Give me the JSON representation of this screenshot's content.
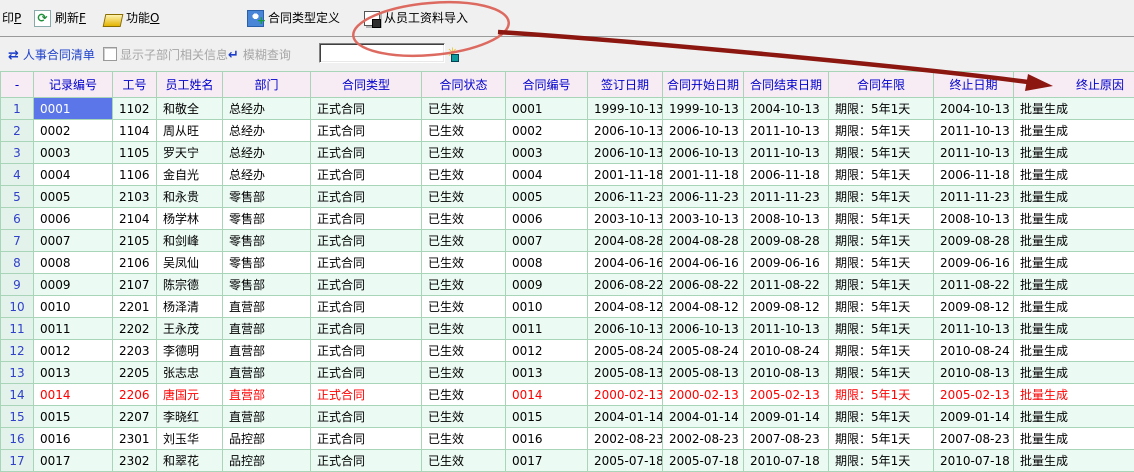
{
  "toolbar": {
    "print_text": "印",
    "print_key": "P",
    "refresh_text": "刷新",
    "refresh_key": "F",
    "functions_text": "功能",
    "functions_key": "O",
    "contract_type_def_label": "合同类型定义",
    "import_from_employee_label": "从员工资料导入"
  },
  "subbar": {
    "list_title": "人事合同清单",
    "checkbox_label": "显示子部门相关信息",
    "checkbox_checked": false,
    "fuzzy_query_label": "模糊查询",
    "query_value": ""
  },
  "icons": {
    "refresh": "⟳",
    "list_arrows": "⇄",
    "fuzzy_arrow": "↵",
    "magic": "✳"
  },
  "table": {
    "columns": [
      "-",
      "记录编号",
      "工号",
      "员工姓名",
      "部门",
      "合同类型",
      "合同状态",
      "合同编号",
      "签订日期",
      "合同开始日期",
      "合同结束日期",
      "合同年限",
      "终止日期",
      "终止原因"
    ],
    "selected_index": 0,
    "red_index": 13,
    "rows": [
      [
        "1",
        "0001",
        "1102",
        "和敬全",
        "总经办",
        "正式合同",
        "已生效",
        "0001",
        "1999-10-13",
        "1999-10-13",
        "2004-10-13",
        "期限：5年1天",
        "2004-10-13",
        "批量生成"
      ],
      [
        "2",
        "0002",
        "1104",
        "周从旺",
        "总经办",
        "正式合同",
        "已生效",
        "0002",
        "2006-10-13",
        "2006-10-13",
        "2011-10-13",
        "期限：5年1天",
        "2011-10-13",
        "批量生成"
      ],
      [
        "3",
        "0003",
        "1105",
        "罗天宁",
        "总经办",
        "正式合同",
        "已生效",
        "0003",
        "2006-10-13",
        "2006-10-13",
        "2011-10-13",
        "期限：5年1天",
        "2011-10-13",
        "批量生成"
      ],
      [
        "4",
        "0004",
        "1106",
        "金自光",
        "总经办",
        "正式合同",
        "已生效",
        "0004",
        "2001-11-18",
        "2001-11-18",
        "2006-11-18",
        "期限：5年1天",
        "2006-11-18",
        "批量生成"
      ],
      [
        "5",
        "0005",
        "2103",
        "和永贵",
        "零售部",
        "正式合同",
        "已生效",
        "0005",
        "2006-11-23",
        "2006-11-23",
        "2011-11-23",
        "期限：5年1天",
        "2011-11-23",
        "批量生成"
      ],
      [
        "6",
        "0006",
        "2104",
        "杨学林",
        "零售部",
        "正式合同",
        "已生效",
        "0006",
        "2003-10-13",
        "2003-10-13",
        "2008-10-13",
        "期限：5年1天",
        "2008-10-13",
        "批量生成"
      ],
      [
        "7",
        "0007",
        "2105",
        "和剑峰",
        "零售部",
        "正式合同",
        "已生效",
        "0007",
        "2004-08-28",
        "2004-08-28",
        "2009-08-28",
        "期限：5年1天",
        "2009-08-28",
        "批量生成"
      ],
      [
        "8",
        "0008",
        "2106",
        "吴凤仙",
        "零售部",
        "正式合同",
        "已生效",
        "0008",
        "2004-06-16",
        "2004-06-16",
        "2009-06-16",
        "期限：5年1天",
        "2009-06-16",
        "批量生成"
      ],
      [
        "9",
        "0009",
        "2107",
        "陈宗德",
        "零售部",
        "正式合同",
        "已生效",
        "0009",
        "2006-08-22",
        "2006-08-22",
        "2011-08-22",
        "期限：5年1天",
        "2011-08-22",
        "批量生成"
      ],
      [
        "10",
        "0010",
        "2201",
        "杨泽清",
        "直营部",
        "正式合同",
        "已生效",
        "0010",
        "2004-08-12",
        "2004-08-12",
        "2009-08-12",
        "期限：5年1天",
        "2009-08-12",
        "批量生成"
      ],
      [
        "11",
        "0011",
        "2202",
        "王永茂",
        "直营部",
        "正式合同",
        "已生效",
        "0011",
        "2006-10-13",
        "2006-10-13",
        "2011-10-13",
        "期限：5年1天",
        "2011-10-13",
        "批量生成"
      ],
      [
        "12",
        "0012",
        "2203",
        "李德明",
        "直营部",
        "正式合同",
        "已生效",
        "0012",
        "2005-08-24",
        "2005-08-24",
        "2010-08-24",
        "期限：5年1天",
        "2010-08-24",
        "批量生成"
      ],
      [
        "13",
        "0013",
        "2205",
        "张志忠",
        "直营部",
        "正式合同",
        "已生效",
        "0013",
        "2005-08-13",
        "2005-08-13",
        "2010-08-13",
        "期限：5年1天",
        "2010-08-13",
        "批量生成"
      ],
      [
        "14",
        "0014",
        "2206",
        "唐国元",
        "直营部",
        "正式合同",
        "已生效",
        "0014",
        "2000-02-13",
        "2000-02-13",
        "2005-02-13",
        "期限：5年1天",
        "2005-02-13",
        "批量生成"
      ],
      [
        "15",
        "0015",
        "2207",
        "李晓红",
        "直营部",
        "正式合同",
        "已生效",
        "0015",
        "2004-01-14",
        "2004-01-14",
        "2009-01-14",
        "期限：5年1天",
        "2009-01-14",
        "批量生成"
      ],
      [
        "16",
        "0016",
        "2301",
        "刘玉华",
        "品控部",
        "正式合同",
        "已生效",
        "0016",
        "2002-08-23",
        "2002-08-23",
        "2007-08-23",
        "期限：5年1天",
        "2007-08-23",
        "批量生成"
      ],
      [
        "17",
        "0017",
        "2302",
        "和翠花",
        "品控部",
        "正式合同",
        "已生效",
        "0017",
        "2005-07-18",
        "2005-07-18",
        "2010-07-18",
        "期限：5年1天",
        "2010-07-18",
        "批量生成"
      ]
    ]
  },
  "colors": {
    "header_text": "#0000cc",
    "header_bg": "#f7ebf4",
    "selected_cell_bg": "#5b76e8",
    "selected_row_bg": "#c7f1d9",
    "red_row_text": "#ff0000",
    "annotation_arrow": "#8b1710",
    "annotation_ellipse": "#dd6a60"
  }
}
